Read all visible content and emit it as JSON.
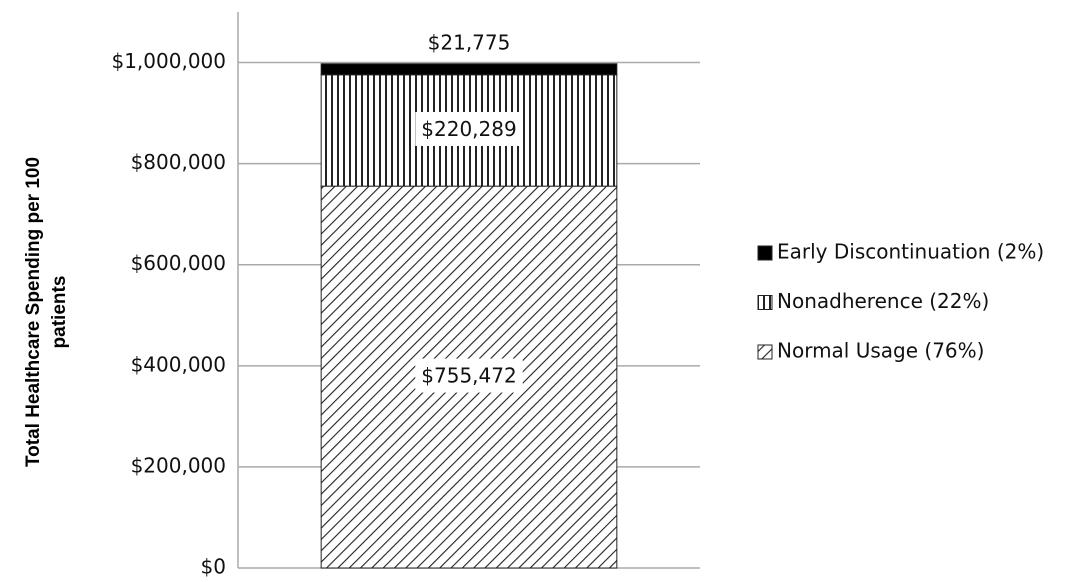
{
  "chart_data": {
    "type": "stacked-bar",
    "ylabel": "Total Healthcare Spending per 100 patients",
    "categories": [
      null
    ],
    "series": [
      {
        "name": "Normal Usage (76%)",
        "color": "#000000",
        "pattern": "diagonal",
        "values": [
          755472
        ],
        "value_labels": [
          "$755,472"
        ]
      },
      {
        "name": "Nonadherence (22%)",
        "color": "#000000",
        "pattern": "vertical",
        "values": [
          220289
        ],
        "value_labels": [
          "$220,289"
        ]
      },
      {
        "name": "Early Discontinuation (2%)",
        "color": "#000000",
        "pattern": "solid",
        "values": [
          21775
        ],
        "value_labels": [
          "$21,775"
        ]
      }
    ],
    "ylim": [
      0,
      1100000
    ],
    "yticks": [
      {
        "value": 0,
        "label": "$0"
      },
      {
        "value": 200000,
        "label": "$200,000"
      },
      {
        "value": 400000,
        "label": "$400,000"
      },
      {
        "value": 600000,
        "label": "$600,000"
      },
      {
        "value": 800000,
        "label": "$800,000"
      },
      {
        "value": 1000000,
        "label": "$1,000,000"
      }
    ],
    "grid": true,
    "legend": "right"
  }
}
